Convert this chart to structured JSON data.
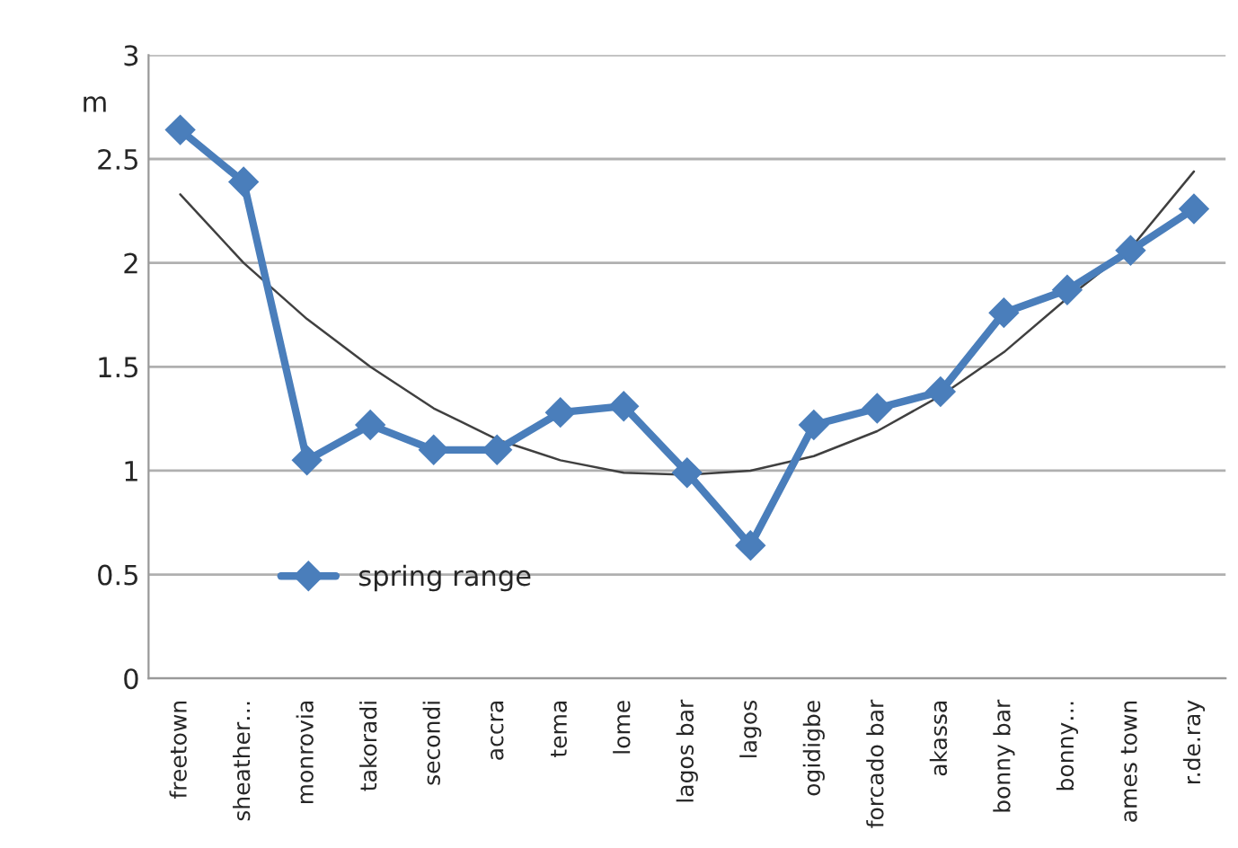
{
  "chart_data": {
    "type": "line",
    "ylabel": "m",
    "categories": [
      "freetown",
      "sheather…",
      "monrovia",
      "takoradi",
      "secondi",
      "accra",
      "tema",
      "lome",
      "lagos bar",
      "lagos",
      "ogidigbe",
      "forcado bar",
      "akassa",
      "bonny bar",
      "bonny…",
      "ames town",
      "r.de.ray"
    ],
    "series": [
      {
        "name": "spring range",
        "color": "#4a7ebb",
        "marker": "diamond",
        "values": [
          2.64,
          2.39,
          1.05,
          1.22,
          1.1,
          1.1,
          1.28,
          1.31,
          0.99,
          0.64,
          1.22,
          1.3,
          1.38,
          1.76,
          1.87,
          2.06,
          2.26
        ]
      },
      {
        "type": "line",
        "color": "#404040",
        "marker": "none",
        "values": [
          2.33,
          2.0,
          1.73,
          1.5,
          1.3,
          1.15,
          1.05,
          0.99,
          0.98,
          1.0,
          1.07,
          1.19,
          1.36,
          1.57,
          1.83,
          2.07,
          2.44
        ]
      }
    ],
    "ylim": [
      0,
      3
    ],
    "yticks": [
      0,
      0.5,
      1,
      1.5,
      2,
      2.5,
      3
    ],
    "grid": "y",
    "legend": "bottom left",
    "line_style": "solid"
  }
}
